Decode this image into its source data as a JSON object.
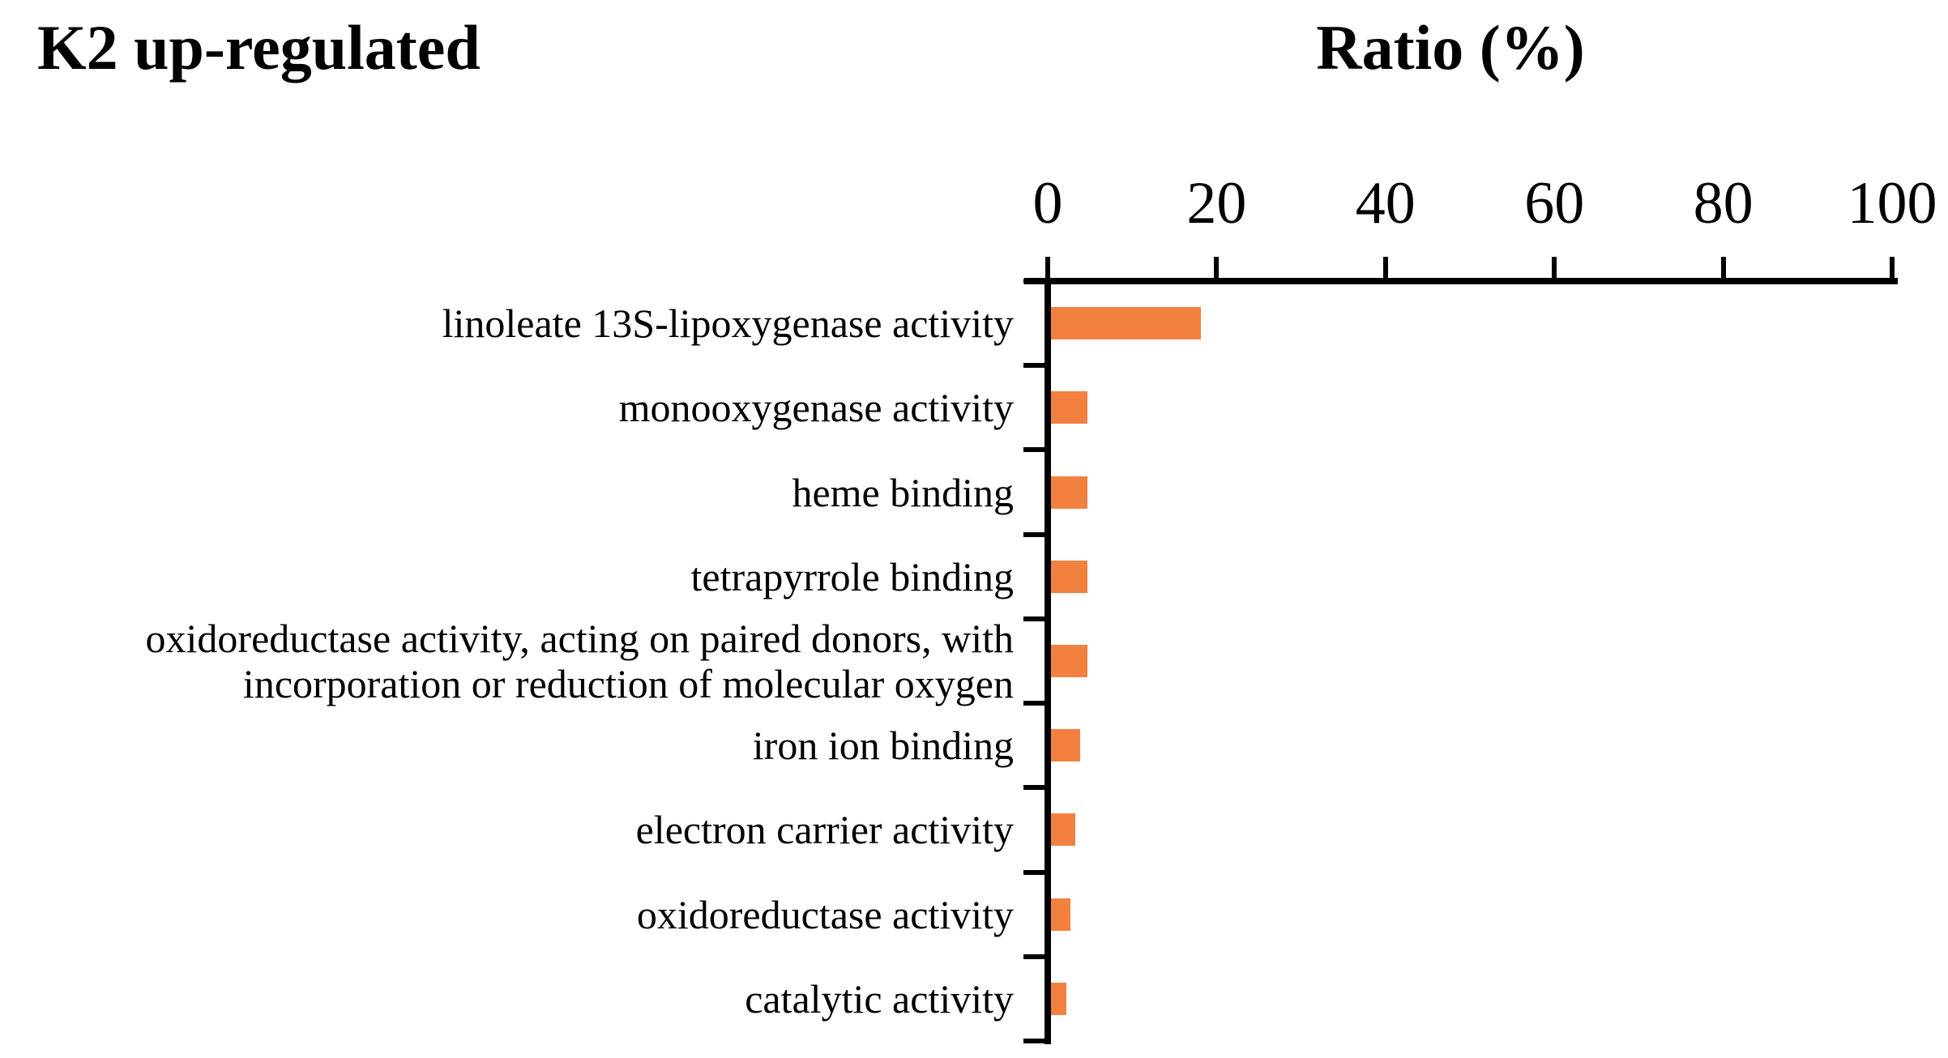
{
  "title": "K2 up-regulated",
  "axis_title": "Ratio (%)",
  "chart_data": {
    "type": "bar",
    "orientation": "horizontal",
    "title": "K2 up-regulated",
    "xlabel": "Ratio (%)",
    "xlim": [
      0,
      100
    ],
    "x_ticks": [
      0,
      20,
      40,
      60,
      80,
      100
    ],
    "grid": false,
    "legend_position": "none",
    "bar_color": "#F28140",
    "axis_color": "#000000",
    "background_color": "#FFFFFF",
    "categories": [
      "linoleate 13S-lipoxygenase activity",
      "monooxygenase activity",
      "heme binding",
      "tetrapyrrole binding",
      "oxidoreductase activity, acting on paired donors, with\nincorporation or reduction of molecular oxygen",
      "iron ion binding",
      "electron carrier activity",
      "oxidoreductase activity",
      "catalytic activity"
    ],
    "values": [
      17.8,
      4.3,
      4.3,
      4.3,
      4.3,
      3.5,
      2.9,
      2.3,
      1.8
    ]
  }
}
